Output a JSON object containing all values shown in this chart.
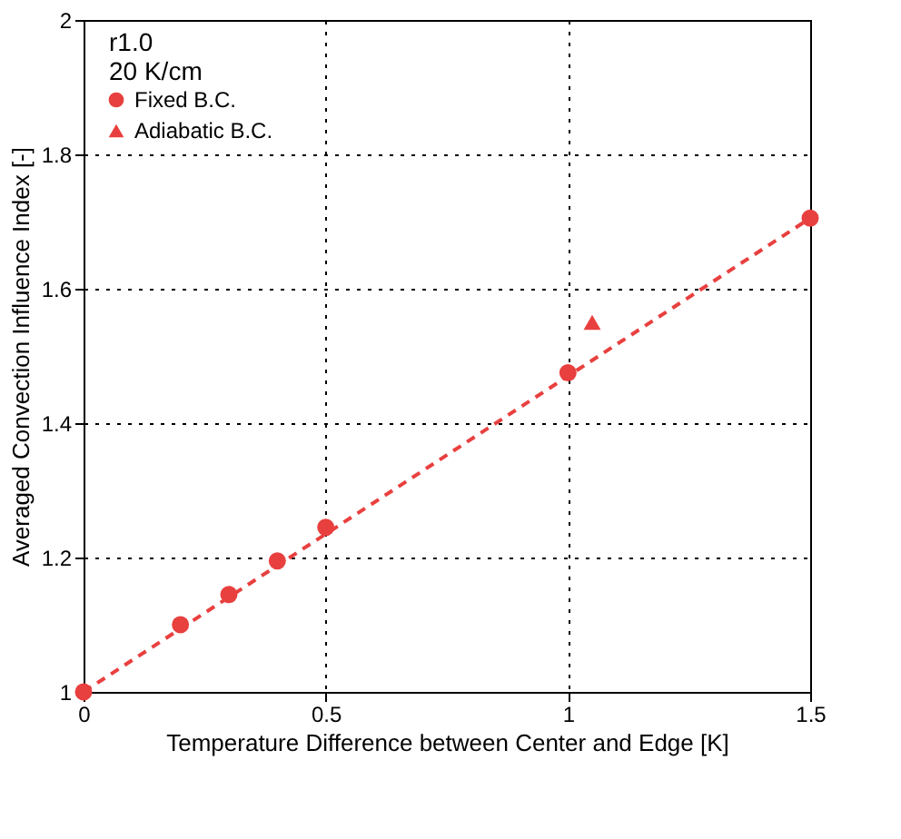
{
  "chart_data": {
    "type": "scatter",
    "xlabel": "Temperature Difference between Center and Edge   [K]",
    "ylabel": "Averaged Convection Influence Index   [-]",
    "annotations": [
      "r1.0",
      "20 K/cm"
    ],
    "series": [
      {
        "name": "Fixed B.C.",
        "marker": "circle",
        "color": "#e8403f",
        "x": [
          0,
          0.2,
          0.3,
          0.4,
          0.5,
          1.0,
          1.5
        ],
        "values": [
          1.0,
          1.1,
          1.145,
          1.195,
          1.245,
          1.475,
          1.705
        ]
      },
      {
        "name": "Adiabatic B.C.",
        "marker": "triangle",
        "color": "#e8403f",
        "x": [
          1.05
        ],
        "values": [
          1.55
        ]
      },
      {
        "type": "line",
        "marker": "none",
        "line_style": "dashed",
        "color": "#e8403f",
        "x": [
          0,
          1.5
        ],
        "values": [
          1.0,
          1.705
        ]
      }
    ],
    "xlim": [
      0,
      1.5
    ],
    "xticks": [
      0,
      0.5,
      1,
      1.5
    ],
    "ylim": [
      1,
      2
    ],
    "yticks": [
      1,
      1.2,
      1.4,
      1.6,
      1.8,
      2
    ],
    "grid": true,
    "legend": "top left"
  }
}
